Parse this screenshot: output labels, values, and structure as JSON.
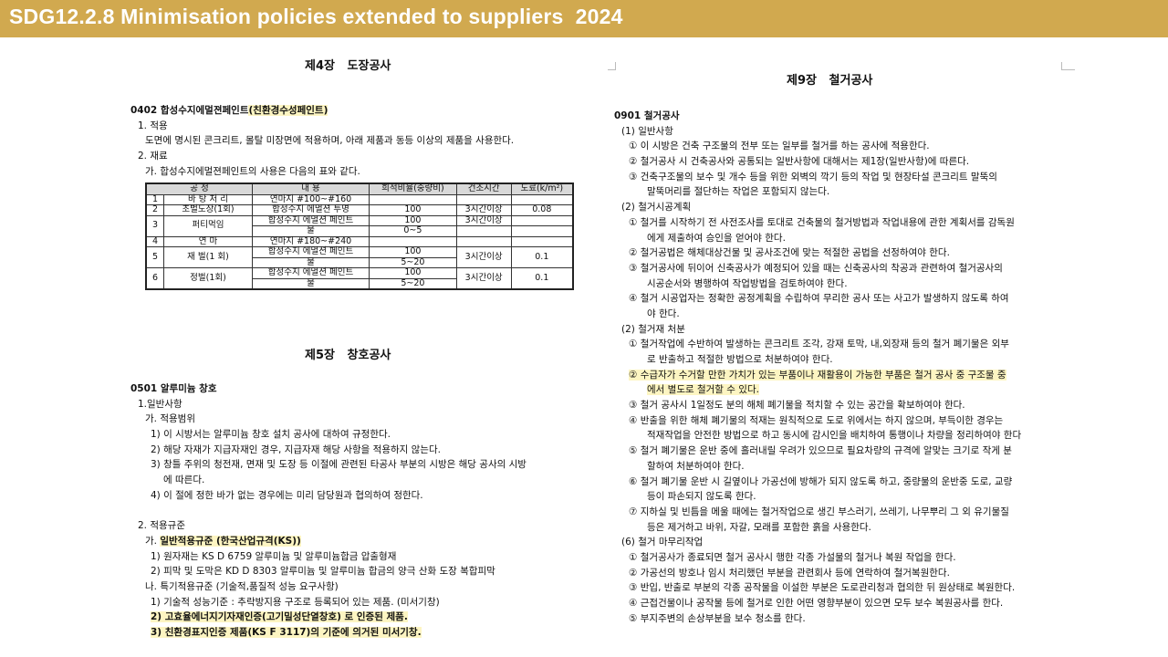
{
  "banner": {
    "title": "SDG12.2.8 Minimisation policies extended to suppliers  2024",
    "color": "#d1a94f"
  },
  "left": {
    "chapter4": "제4장   도장공사",
    "sec0402": [
      {
        "t": "0402  합성수지에멀젼페인트",
        "type": "heading",
        "hl_text": "(친환경수성페인트)"
      },
      {
        "t": "1. 적용",
        "type": "l1"
      },
      {
        "t": "도면에 명시된 콘크리트, 몰탈 미장면에 적용하며, 아래 제품과 동등 이상의 제품을 사용한다.",
        "type": "l2"
      },
      {
        "t": "2. 재료",
        "type": "l1"
      },
      {
        "t": "가. 합성수지에멀젼페인트의 사용은 다음의 표와 같다.",
        "type": "l2"
      }
    ],
    "table": {
      "headers": [
        "공   정",
        "내   용",
        "희석비율(중량비)",
        "건조시간",
        "도료(k/m²)"
      ],
      "groups": [
        {
          "no": "1",
          "name": "바 탕 처 리",
          "rows": [
            {
              "content": "연마지 #100~#160",
              "ratio": "",
              "time": "",
              "paint": ""
            }
          ]
        },
        {
          "no": "2",
          "name": "초벌도장(1회)",
          "rows": [
            {
              "content": "합성수지 에멀션 투명",
              "ratio": "100",
              "time": "3시간이상",
              "paint": "0.08"
            }
          ]
        },
        {
          "no": "3",
          "name": "퍼티먹임",
          "rows": [
            {
              "content": "합성수지 에멀션 페인트",
              "ratio": "100",
              "time": "3시간이상",
              "paint": ""
            },
            {
              "content": "물",
              "ratio": "0~5",
              "time": "",
              "paint": ""
            }
          ]
        },
        {
          "no": "4",
          "name": "연     마",
          "rows": [
            {
              "content": "연마지 #180~#240",
              "ratio": "",
              "time": "",
              "paint": ""
            }
          ]
        },
        {
          "no": "5",
          "name": "재  벌(1 회)",
          "merged_time": "3시간이상",
          "merged_paint": "0.1",
          "rows": [
            {
              "content": "합성수지 에멀션 페인트",
              "ratio": "100"
            },
            {
              "content": "물",
              "ratio": "5~20"
            }
          ]
        },
        {
          "no": "6",
          "name": "정벌(1회)",
          "merged_time": "3시간이상",
          "merged_paint": "0.1",
          "rows": [
            {
              "content": "합성수지 에멀션 페인트",
              "ratio": "100"
            },
            {
              "content": "물",
              "ratio": "5~20"
            }
          ]
        }
      ]
    },
    "chapter5": "제5장   창호공사",
    "sec0501": [
      {
        "t": "0501  알루미늄 창호",
        "type": "heading"
      },
      {
        "t": "1.일반사항",
        "type": "l1"
      },
      {
        "t": "가. 적용범위",
        "type": "l2"
      },
      {
        "t": "1) 이 시방서는 알루미늄 창호 설치 공사에 대하여 규정한다.",
        "type": "l3"
      },
      {
        "t": "2) 해당 자재가 지급자재인 경우, 지급자재 해당 사항을 적용하지 않는다.",
        "type": "l3"
      },
      {
        "t": "3) 창틀 주위의 청전재, 면재 및 도장 등 이절에 관련된 타공사 부분의 시방은 해당 공사의 시방",
        "type": "l3"
      },
      {
        "t": "에 따른다.",
        "type": "l3c"
      },
      {
        "t": "4) 이 절에 정한 바가 없는 경우에는 미리 담당원과 협의하여 정한다.",
        "type": "l3"
      },
      {
        "t": "",
        "type": "gap"
      },
      {
        "t": "2. 적용규준",
        "type": "l1"
      },
      {
        "t": "가. ",
        "type": "l2",
        "hl_text": "일반적용규준 (한국산업규격(KS))"
      },
      {
        "t": "1) 원자재는 KS D 6759 알루미늄 및 알루미늄합금 압출형재",
        "type": "l3"
      },
      {
        "t": "2) 피막 및 도막은 KD D 8303 알루미늄 및 알루미늄 합금의 양극 산화 도장 복합피막",
        "type": "l3"
      },
      {
        "t": "나. 특기적용규준 (기술적,품질적 성능 요구사항)",
        "type": "l2"
      },
      {
        "t": "1) 기술적 성능기준 : 추락방지용 구조로 등록되어 있는 제품. (미서기창)",
        "type": "l3"
      },
      {
        "t": "",
        "type": "l3",
        "hl_text": "2) 고효율에너지기자재인증(고기밀성단열창호) 로 인증된 제품."
      },
      {
        "t": "",
        "type": "l3",
        "hl_text": "3) 친환경표지인증 제품(KS F 3117)의 기준에 의거된 미서기창."
      }
    ]
  },
  "right": {
    "chapter9": "제9장   철거공사",
    "sec0901": [
      {
        "t": "0901  철거공사",
        "type": "heading"
      },
      {
        "t": "(1) 일반사항",
        "type": "l1"
      },
      {
        "t": "① 이 시방은 건축 구조물의 전부 또는 일부를 철거를 하는 공사에 적용한다.",
        "type": "l2"
      },
      {
        "t": "② 철거공사 시 건축공사와 공통되는 일반사항에 대해서는 제1장(일반사항)에 따른다.",
        "type": "l2"
      },
      {
        "t": "③ 건축구조물의 보수 및 개수 등을 위한 외벽의 깍기 등의 작업 및 현장타설 콘크리트 말뚝의",
        "type": "l2"
      },
      {
        "t": "말뚝머리를 절단하는 작업은 포함되지 않는다.",
        "type": "l3c"
      },
      {
        "t": "(2) 철거시공계획",
        "type": "l1"
      },
      {
        "t": "① 철거를 시작하기 전 사전조사를 토대로 건축물의 철거방법과 작업내용에 관한 계획서를 감독원",
        "type": "l2"
      },
      {
        "t": "에게 제출하여 승인을 얻어야 한다.",
        "type": "l3c"
      },
      {
        "t": "② 철거공법은 해체대상건물 및 공사조건에 맞는 적절한 공법을 선정하여야 한다.",
        "type": "l2"
      },
      {
        "t": "③ 철거공사에 뒤이어 신축공사가 예정되어 있을 때는 신축공사의 착공과 관련하여 철거공사의",
        "type": "l2"
      },
      {
        "t": "시공순서와 병행하여 작업방법을 검토하여야 한다.",
        "type": "l3c"
      },
      {
        "t": "④ 철거 시공업자는 정확한 공정계획을 수립하여 무리한 공사 또는 사고가 발생하지 않도록 하여",
        "type": "l2"
      },
      {
        "t": "야 한다.",
        "type": "l3c"
      },
      {
        "t": "(2) 철거재 처분",
        "type": "l1"
      },
      {
        "t": "① 철거작업에 수반하여 발생하는 콘크리트 조각, 강재 토막, 내,외장재 등의 철거 폐기물은 외부",
        "type": "l2"
      },
      {
        "t": "로 반출하고 적절한 방법으로 처분하여야 한다.",
        "type": "l3c"
      },
      {
        "t": "",
        "type": "l2",
        "hl_text": "② 수급자가 수거할 만한 가치가 있는 부품이나 재활용이 가능한 부품은 철거 공사 중 구조물 중 ",
        "hl_plain": true
      },
      {
        "t": "",
        "type": "l3c",
        "hl_text": "에서 별도로  철거할 수 있다.",
        "hl_plain": true
      },
      {
        "t": "③ 철거 공사시 1일정도 분의 해체 폐기물을 적치할 수 있는 공간을 확보하여야 한다.",
        "type": "l2"
      },
      {
        "t": "④ 반출을 위한 해체 폐기물의 적재는 원칙적으로 도로 위에서는 하지 않으며, 부득이한 경우는",
        "type": "l2"
      },
      {
        "t": "적재작업을 안전한 방법으로 하고 동시에 감시인을 배치하여 통행이나 차량을 정리하여야 한다",
        "type": "l3c"
      },
      {
        "t": "⑤ 철거 폐기물은 운반 중에 흘러내릴 우려가 있으므로 필요차량의 규격에 알맞는 크기로 작게 분",
        "type": "l2"
      },
      {
        "t": "할하여 처분하여야 한다.",
        "type": "l3c"
      },
      {
        "t": "⑥ 철거 폐기물 운반 시 길옆이나 가공선에 방해가 되지 않도록 하고, 중량물의 운반중 도로, 교량",
        "type": "l2"
      },
      {
        "t": "등이 파손되지 않도록 한다.",
        "type": "l3c"
      },
      {
        "t": "⑦ 지하실 및 빈틈을 메울 때에는 철거작업으로 생긴 부스러기, 쓰레기, 나무뿌리 그 외 유기물질",
        "type": "l2"
      },
      {
        "t": "등은 제거하고 바위, 자갈, 모래를 포함한 흙을 사용한다.",
        "type": "l3c"
      },
      {
        "t": "(6) 철거 마무리작업",
        "type": "l1"
      },
      {
        "t": "① 철거공사가 종료되면 철거 공사시 행한 각종 가설물의 철거나 복원 작업을 한다.",
        "type": "l2"
      },
      {
        "t": "② 가공선의 방호나 임시 처리했던 부분을 관련회사 등에 연락하여 철거복원한다.",
        "type": "l2"
      },
      {
        "t": "③ 반입, 반출로 부분의 각종 공작물을 이설한 부분은 도로관리청과 협의한 뒤 원상태로 복원한다.",
        "type": "l2"
      },
      {
        "t": "④ 근접건물이나 공작물 등에 철거로 인한 어떤 영향부분이 있으면 모두 보수 복원공사를 한다.",
        "type": "l2"
      },
      {
        "t": "⑤ 부지주변의 손상부분을 보수 청소를 한다.",
        "type": "l2"
      }
    ]
  }
}
